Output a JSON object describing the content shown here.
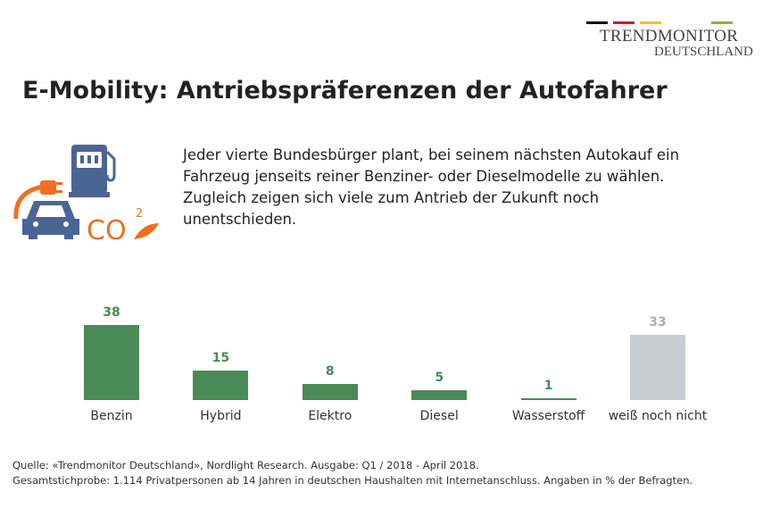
{
  "logo": {
    "line1": "TRENDMONITOR",
    "line2": "DEUTSCHLAND",
    "stripe_colors": [
      "#111111",
      "#cc2222",
      "#f0c030",
      "#8ab43c"
    ]
  },
  "title": "E-Mobility: Antriebspräferenzen der Autofahrer",
  "intro": "Jeder vierte Bundesbürger plant, bei seinem nächsten Autokauf ein Fahrzeug jenseits reiner Benziner- oder Dieselmodelle zu wählen. Zugleich zeigen sich viele zum Antrieb der Zukunft noch unentschieden.",
  "icons": [
    "fuel-pump-icon",
    "plug-icon",
    "car-icon",
    "co2-leaf-icon"
  ],
  "chart_data": {
    "type": "bar",
    "categories": [
      "Benzin",
      "Hybrid",
      "Elektro",
      "Diesel",
      "Wasserstoff",
      "weiß noch nicht"
    ],
    "values": [
      38,
      15,
      8,
      5,
      1,
      33
    ],
    "colors": [
      "#4a8a56",
      "#4a8a56",
      "#4a8a56",
      "#4a8a56",
      "#4a8a56",
      "#c9ccd0"
    ],
    "label_colors": [
      "#4a8a56",
      "#4a8a56",
      "#4a8a56",
      "#4a8a56",
      "#4a8a56",
      "#a9adb2"
    ],
    "unit": "%",
    "grid": false
  },
  "source": {
    "line1": "Quelle: «Trendmonitor Deutschland», Nordlight Research. Ausgabe: Q1 / 2018 - April 2018.",
    "line2": "Gesamtstichprobe: 1.114 Privatpersonen ab 14 Jahren in deutschen Haushalten mit Internetanschluss. Angaben in % der Befragten."
  }
}
